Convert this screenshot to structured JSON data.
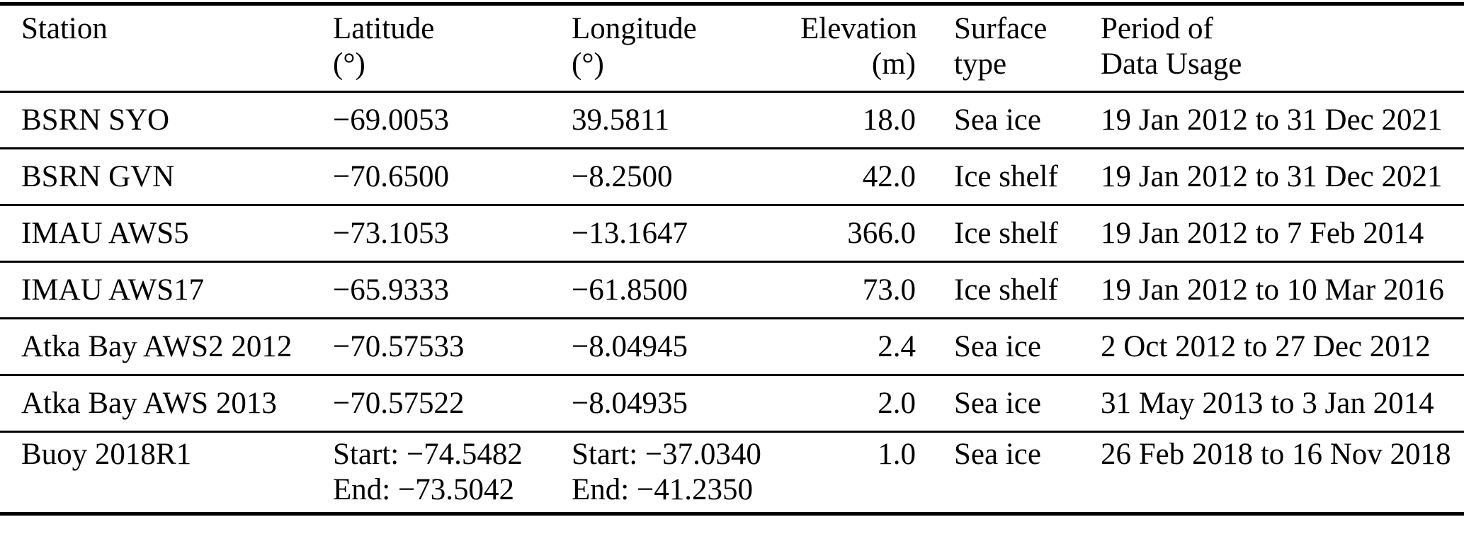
{
  "page": {
    "background": "#ffffff",
    "text_color": "#000000",
    "rule_color": "#000000"
  },
  "table": {
    "columns": [
      {
        "line1": "Station",
        "line2": ""
      },
      {
        "line1": "Latitude",
        "line2": "(°)"
      },
      {
        "line1": "Longitude",
        "line2": "(°)"
      },
      {
        "line1": "Elevation",
        "line2": "(m)"
      },
      {
        "line1": "Surface",
        "line2": "type"
      },
      {
        "line1": "Period of",
        "line2": "Data Usage"
      }
    ],
    "rows": [
      {
        "station": "BSRN SYO",
        "latitude": "−69.0053",
        "longitude": "39.5811",
        "elevation": "18.0",
        "surface_type": "Sea ice",
        "period": "19 Jan 2012 to 31 Dec 2021"
      },
      {
        "station": "BSRN GVN",
        "latitude": "−70.6500",
        "longitude": "−8.2500",
        "elevation": "42.0",
        "surface_type": "Ice shelf",
        "period": "19 Jan 2012 to 31 Dec 2021"
      },
      {
        "station": "IMAU AWS5",
        "latitude": "−73.1053",
        "longitude": "−13.1647",
        "elevation": "366.0",
        "surface_type": "Ice shelf",
        "period": "19 Jan 2012 to 7 Feb 2014"
      },
      {
        "station": "IMAU AWS17",
        "latitude": "−65.9333",
        "longitude": "−61.8500",
        "elevation": "73.0",
        "surface_type": "Ice shelf",
        "period": "19 Jan 2012 to 10 Mar 2016"
      },
      {
        "station": "Atka Bay AWS2 2012",
        "latitude": "−70.57533",
        "longitude": "−8.04945",
        "elevation": "2.4",
        "surface_type": "Sea ice",
        "period": "2 Oct 2012 to 27 Dec 2012"
      },
      {
        "station": "Atka Bay AWS 2013",
        "latitude": "−70.57522",
        "longitude": "−8.04935",
        "elevation": "2.0",
        "surface_type": "Sea ice",
        "period": "31 May 2013 to 3 Jan 2014"
      },
      {
        "station": "Buoy 2018R1",
        "latitude_start": "Start: −74.5482",
        "latitude_end": "End: −73.5042",
        "longitude_start": "Start: −37.0340",
        "longitude_end": "End: −41.2350",
        "elevation": "1.0",
        "surface_type": "Sea ice",
        "period": "26 Feb 2018 to 16 Nov 2018"
      }
    ]
  }
}
